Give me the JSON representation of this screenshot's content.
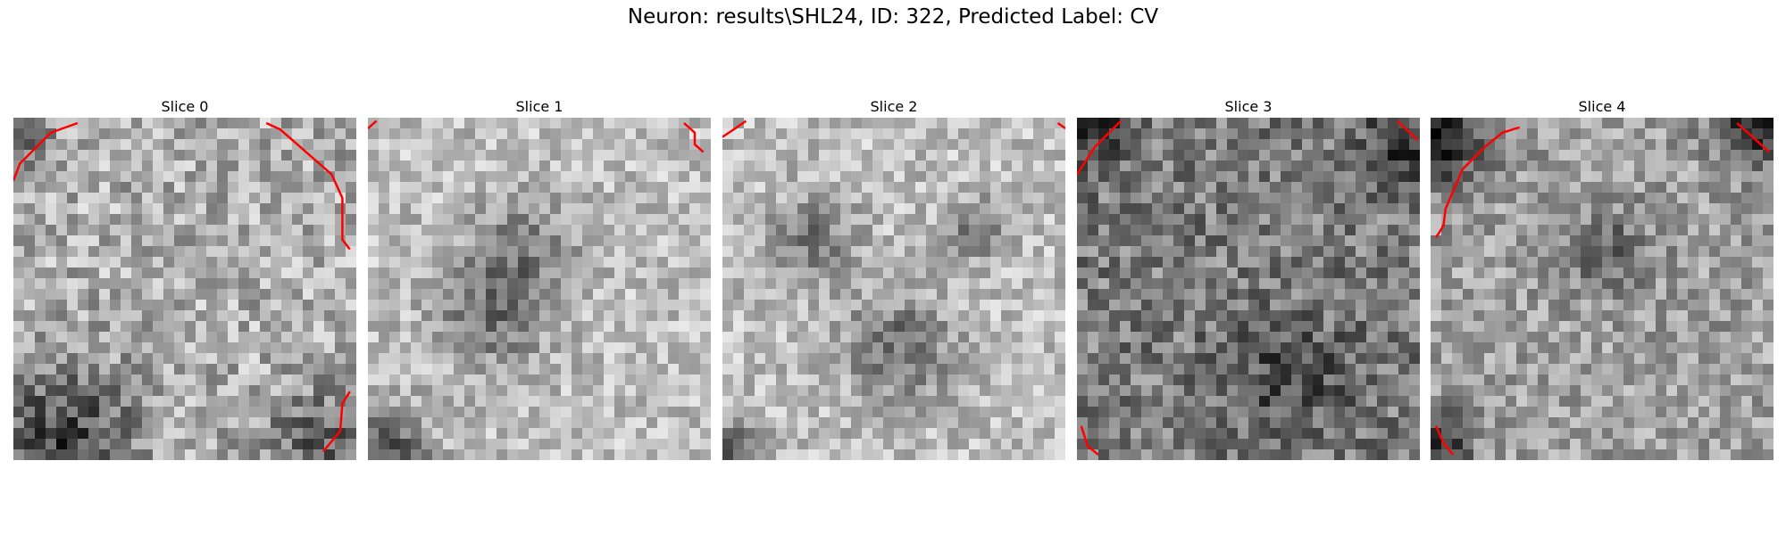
{
  "figure": {
    "title": "Neuron: results\\SHL24, ID: 322, Predicted Label: CV",
    "panels": [
      {
        "title": "Slice 0"
      },
      {
        "title": "Slice 1"
      },
      {
        "title": "Slice 2"
      },
      {
        "title": "Slice 3"
      },
      {
        "title": "Slice 4"
      }
    ]
  }
}
